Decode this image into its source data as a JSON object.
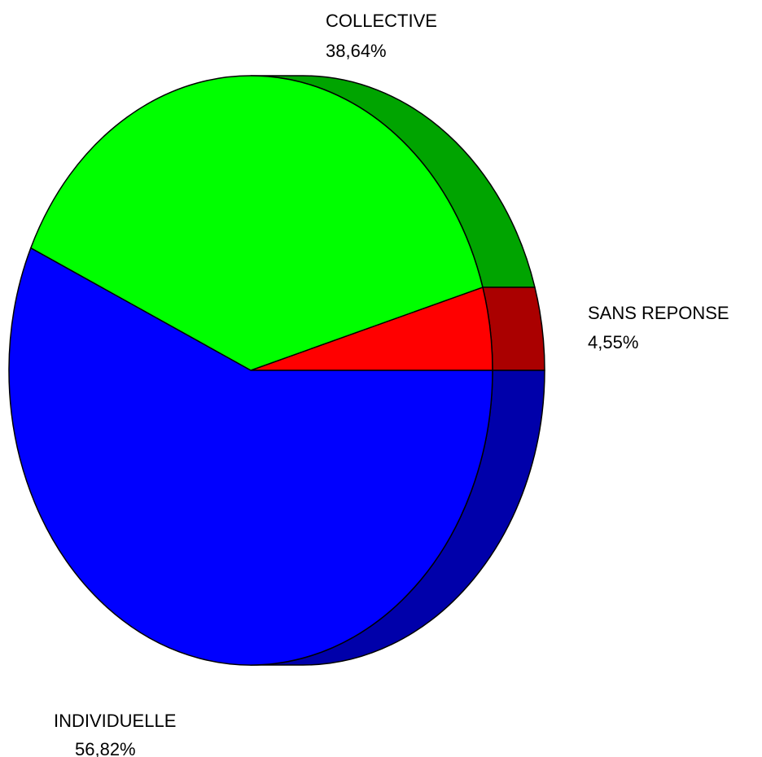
{
  "chart_data": {
    "type": "pie",
    "title": "",
    "style": "3d-extruded",
    "slices": [
      {
        "label": "SANS REPONSE",
        "value": 4.55,
        "value_label": "4,55%",
        "color": "#ff0000",
        "side_color": "#aa0000"
      },
      {
        "label": "COLLECTIVE",
        "value": 38.64,
        "value_label": "38,64%",
        "color": "#00ff00",
        "side_color": "#00a400"
      },
      {
        "label": "INDIVIDUELLE",
        "value": 56.82,
        "value_label": "56,82%",
        "color": "#0000ff",
        "side_color": "#0000aa"
      }
    ]
  }
}
